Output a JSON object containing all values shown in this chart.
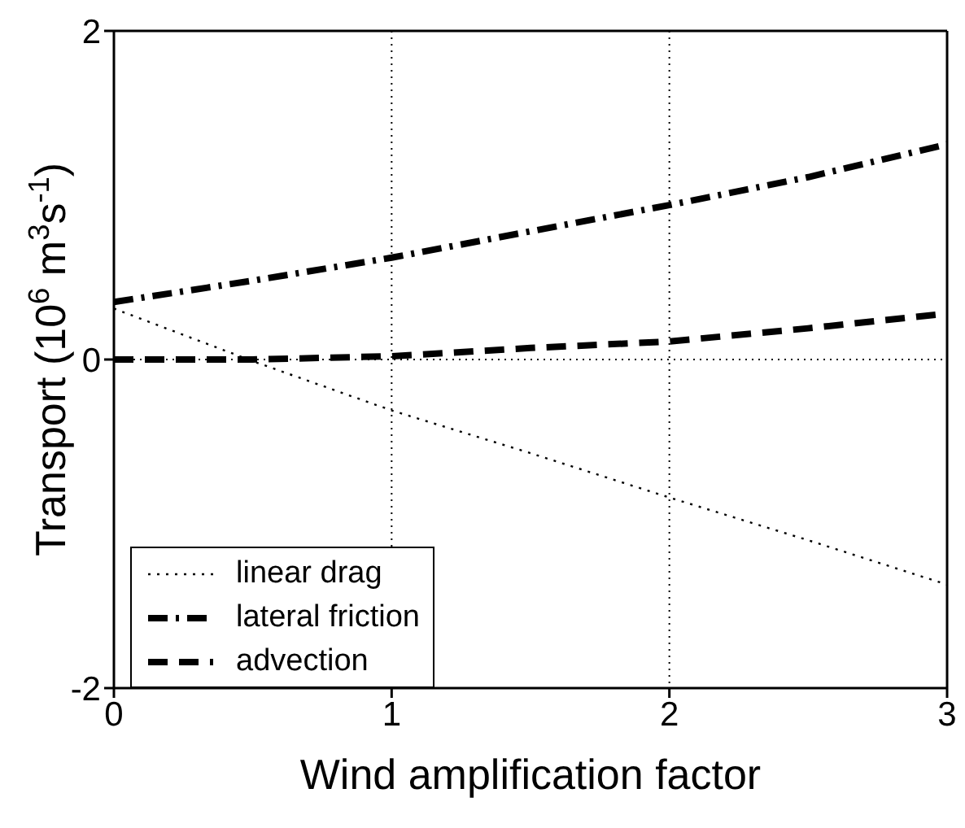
{
  "chart_data": {
    "type": "line",
    "xlabel": "Wind amplification factor",
    "ylabel": "Transport (10$^{6}$ m$^{3}$s$^{-1}$)",
    "x": [
      0,
      0.5,
      1,
      1.5,
      2,
      2.5,
      3
    ],
    "series": [
      {
        "name": "linear drag",
        "color": "#000000",
        "line_style": "dotted",
        "values": [
          0.31,
          -0.01,
          -0.31,
          -0.57,
          -0.84,
          -1.1,
          -1.37
        ]
      },
      {
        "name": "lateral friction",
        "color": "#000000",
        "line_style": "dashdot",
        "values": [
          0.35,
          0.48,
          0.62,
          0.78,
          0.94,
          1.11,
          1.31
        ]
      },
      {
        "name": "advection",
        "color": "#000000",
        "line_style": "dashed",
        "values": [
          0,
          0,
          0.02,
          0.07,
          0.11,
          0.19,
          0.28
        ]
      }
    ],
    "xlim": [
      0,
      3
    ],
    "xticks": [
      0,
      1,
      2,
      3
    ],
    "ylim": [
      -2,
      2
    ],
    "yticks": [
      -2,
      0,
      2
    ],
    "grid": true,
    "legend": "bottom left",
    "marker": "none"
  }
}
